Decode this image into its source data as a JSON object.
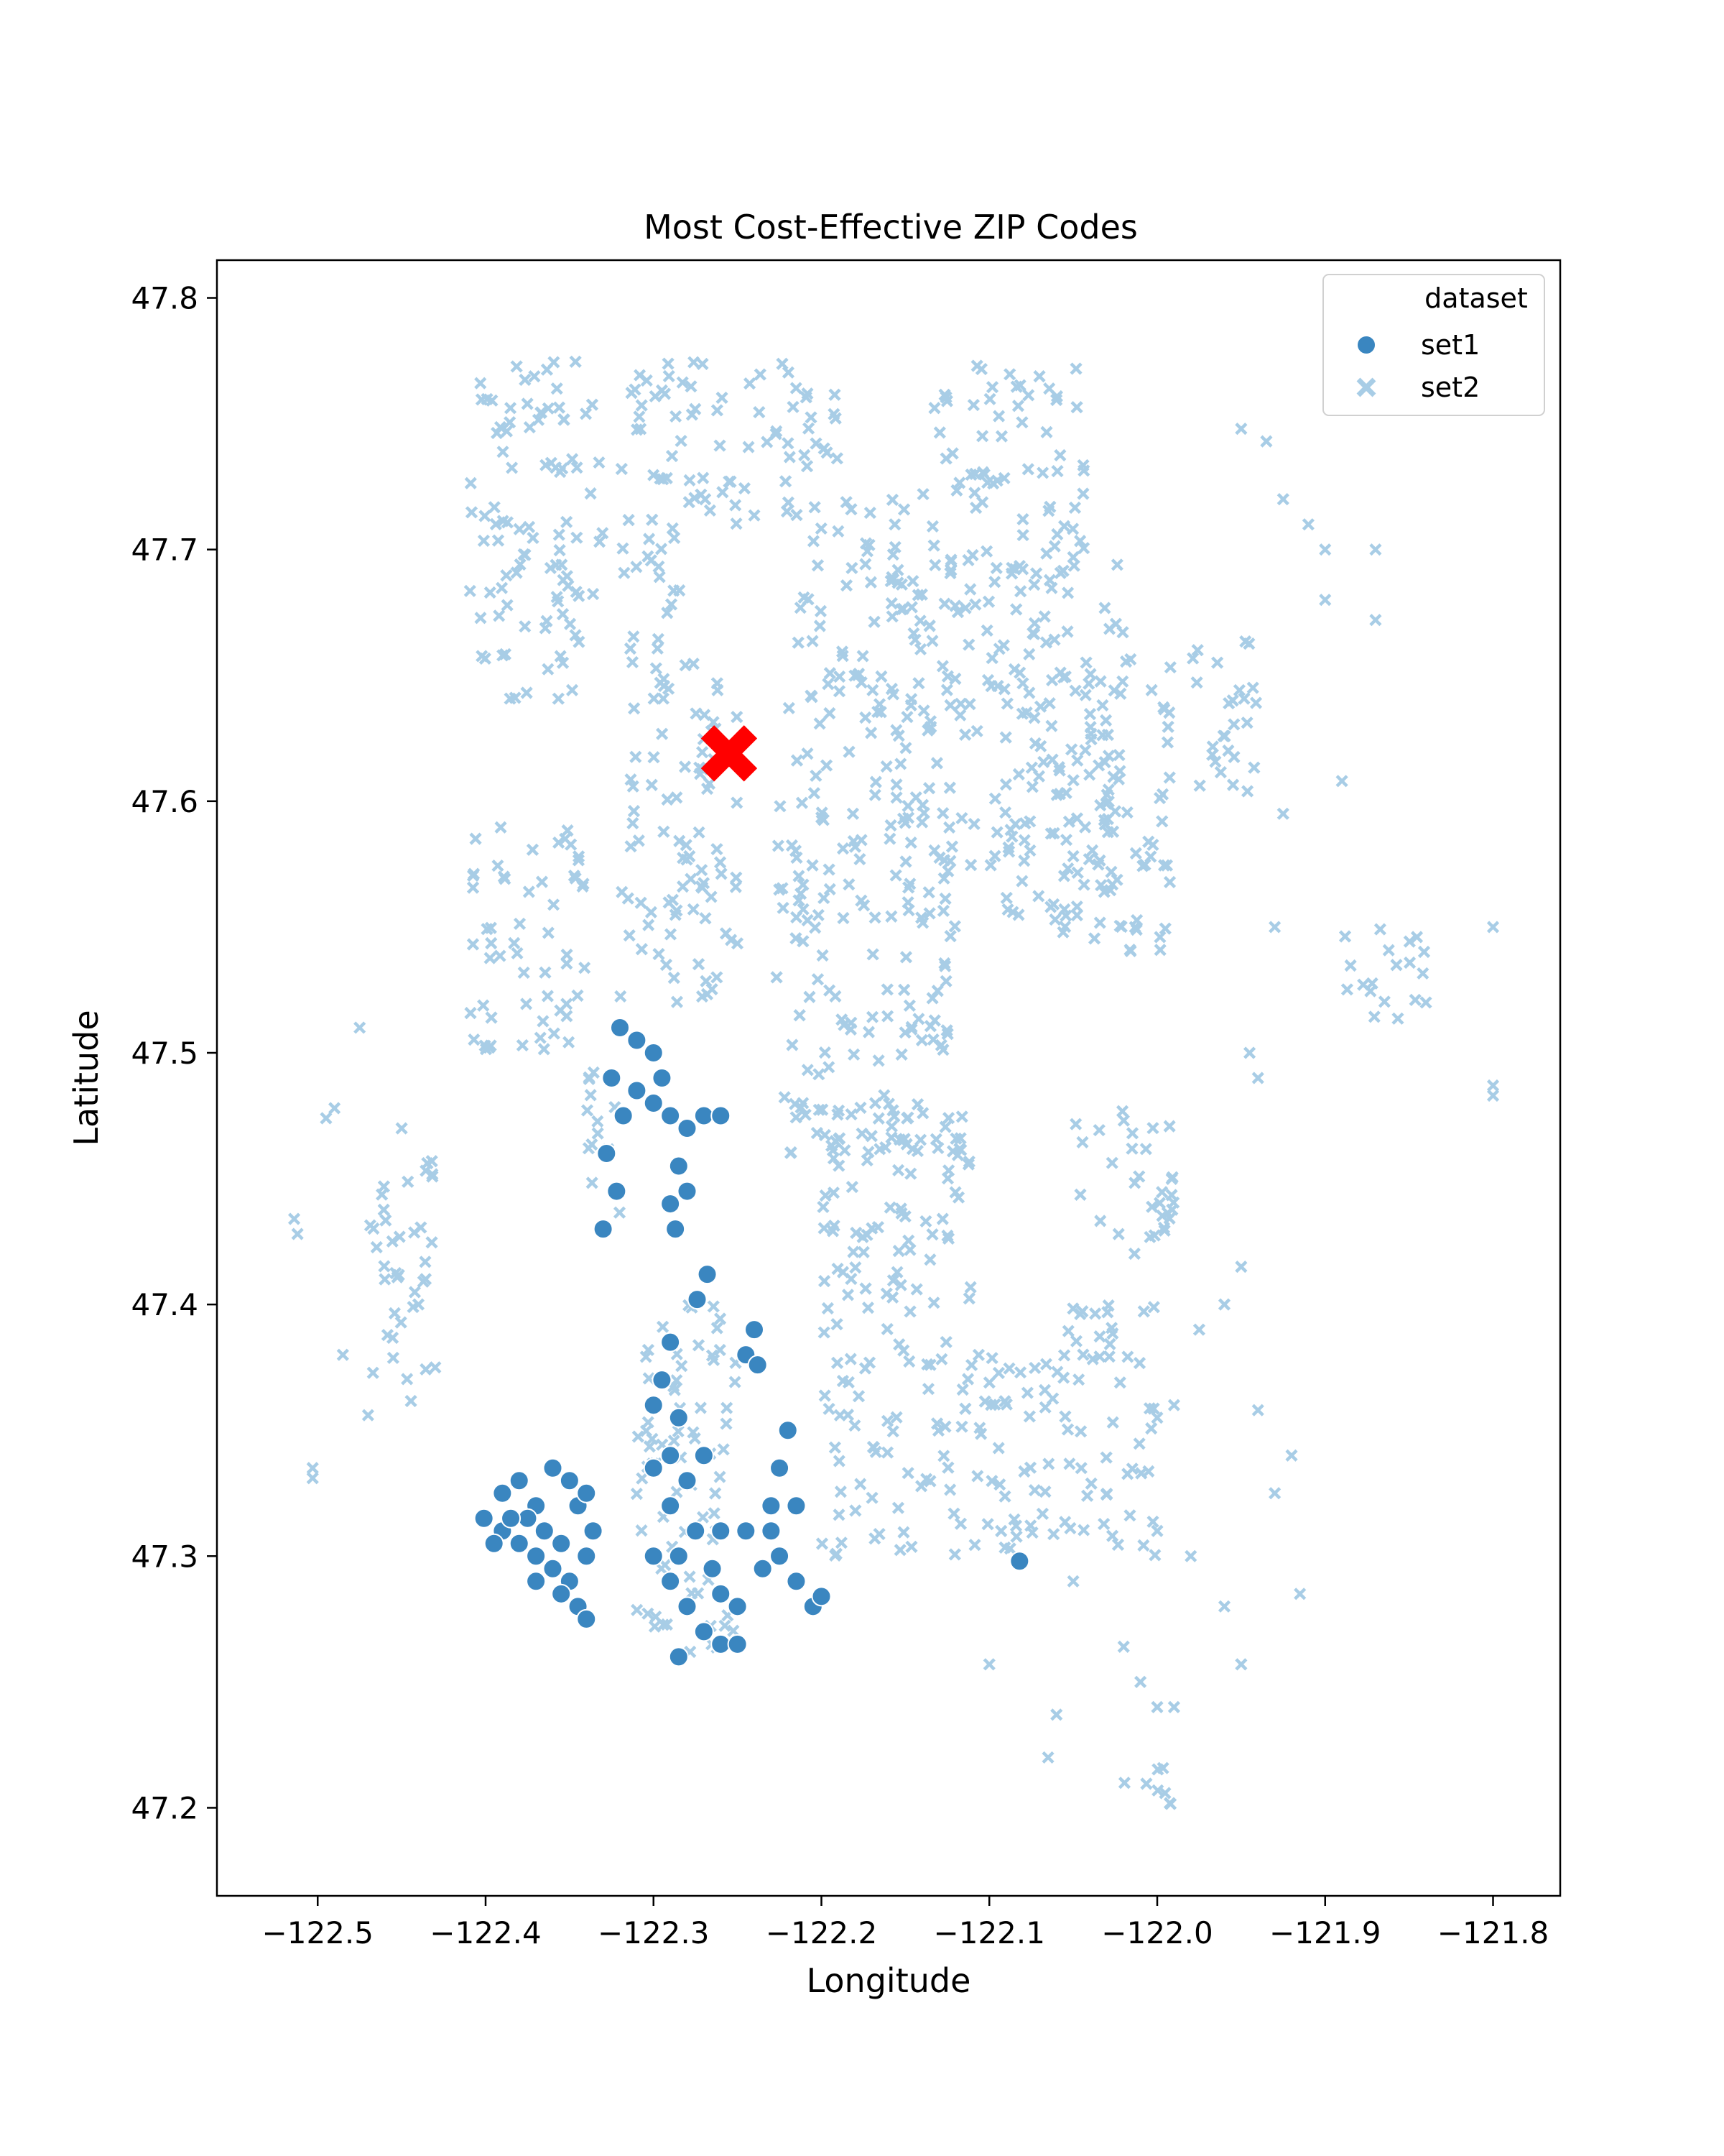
{
  "chart_data": {
    "type": "scatter",
    "title": "Most Cost-Effective ZIP Codes",
    "xlabel": "Longitude",
    "ylabel": "Latitude",
    "xlim": [
      -122.56,
      -121.76
    ],
    "ylim": [
      47.165,
      47.815
    ],
    "xticks": [
      -122.5,
      -122.4,
      -122.3,
      -122.2,
      -122.1,
      -122.0,
      -121.9,
      -121.8
    ],
    "yticks": [
      47.2,
      47.3,
      47.4,
      47.5,
      47.6,
      47.7,
      47.8
    ],
    "xtick_labels": [
      "−122.5",
      "−122.4",
      "−122.3",
      "−122.2",
      "−122.1",
      "−122.0",
      "−121.9",
      "−121.8"
    ],
    "ytick_labels": [
      "47.2",
      "47.3",
      "47.4",
      "47.5",
      "47.6",
      "47.7",
      "47.8"
    ],
    "grid": false,
    "legend": {
      "title": "dataset",
      "placement": "top-right",
      "entries": [
        {
          "name": "set1",
          "marker": "circle",
          "color": "#3a86c0"
        },
        {
          "name": "set2",
          "marker": "x",
          "color": "#a8cde6"
        }
      ]
    },
    "highlight_point": {
      "x": -122.255,
      "y": 47.619,
      "marker": "x",
      "color": "#ff0000"
    },
    "series": [
      {
        "name": "set1",
        "marker": "circle",
        "color": "#3a86c0",
        "points": [
          [
            -122.32,
            47.51
          ],
          [
            -122.31,
            47.505
          ],
          [
            -122.325,
            47.49
          ],
          [
            -122.318,
            47.475
          ],
          [
            -122.328,
            47.46
          ],
          [
            -122.322,
            47.445
          ],
          [
            -122.33,
            47.43
          ],
          [
            -122.31,
            47.485
          ],
          [
            -122.3,
            47.48
          ],
          [
            -122.29,
            47.475
          ],
          [
            -122.28,
            47.47
          ],
          [
            -122.27,
            47.475
          ],
          [
            -122.26,
            47.475
          ],
          [
            -122.295,
            47.49
          ],
          [
            -122.285,
            47.455
          ],
          [
            -122.29,
            47.44
          ],
          [
            -122.28,
            47.445
          ],
          [
            -122.287,
            47.43
          ],
          [
            -122.3,
            47.5
          ],
          [
            -122.268,
            47.412
          ],
          [
            -122.274,
            47.402
          ],
          [
            -122.24,
            47.39
          ],
          [
            -122.245,
            47.38
          ],
          [
            -122.238,
            47.376
          ],
          [
            -122.29,
            47.385
          ],
          [
            -122.295,
            47.37
          ],
          [
            -122.3,
            47.36
          ],
          [
            -122.285,
            47.355
          ],
          [
            -122.29,
            47.34
          ],
          [
            -122.28,
            47.33
          ],
          [
            -122.29,
            47.32
          ],
          [
            -122.275,
            47.31
          ],
          [
            -122.285,
            47.3
          ],
          [
            -122.29,
            47.29
          ],
          [
            -122.28,
            47.28
          ],
          [
            -122.27,
            47.27
          ],
          [
            -122.26,
            47.265
          ],
          [
            -122.285,
            47.26
          ],
          [
            -122.25,
            47.265
          ],
          [
            -122.265,
            47.295
          ],
          [
            -122.3,
            47.3
          ],
          [
            -122.26,
            47.31
          ],
          [
            -122.27,
            47.34
          ],
          [
            -122.3,
            47.335
          ],
          [
            -122.245,
            47.31
          ],
          [
            -122.26,
            47.285
          ],
          [
            -122.25,
            47.28
          ],
          [
            -122.22,
            47.35
          ],
          [
            -122.225,
            47.335
          ],
          [
            -122.215,
            47.32
          ],
          [
            -122.23,
            47.31
          ],
          [
            -122.225,
            47.3
          ],
          [
            -122.215,
            47.29
          ],
          [
            -122.205,
            47.28
          ],
          [
            -122.23,
            47.32
          ],
          [
            -122.2,
            47.284
          ],
          [
            -122.235,
            47.295
          ],
          [
            -122.401,
            47.315
          ],
          [
            -122.39,
            47.325
          ],
          [
            -122.38,
            47.33
          ],
          [
            -122.37,
            47.32
          ],
          [
            -122.36,
            47.335
          ],
          [
            -122.35,
            47.33
          ],
          [
            -122.345,
            47.32
          ],
          [
            -122.39,
            47.31
          ],
          [
            -122.38,
            47.305
          ],
          [
            -122.37,
            47.3
          ],
          [
            -122.36,
            47.295
          ],
          [
            -122.35,
            47.29
          ],
          [
            -122.34,
            47.3
          ],
          [
            -122.345,
            47.28
          ],
          [
            -122.355,
            47.285
          ],
          [
            -122.365,
            47.31
          ],
          [
            -122.375,
            47.315
          ],
          [
            -122.395,
            47.305
          ],
          [
            -122.385,
            47.315
          ],
          [
            -122.34,
            47.275
          ],
          [
            -122.336,
            47.31
          ],
          [
            -122.34,
            47.325
          ],
          [
            -122.355,
            47.305
          ],
          [
            -122.37,
            47.29
          ],
          [
            -122.082,
            47.298
          ]
        ]
      },
      {
        "name": "set2",
        "marker": "x",
        "color": "#a8cde6",
        "regions": [
          {
            "xmin": -122.41,
            "xmax": -122.33,
            "ymin": 47.64,
            "ymax": 47.775
          },
          {
            "xmin": -122.32,
            "xmax": -122.28,
            "ymin": 47.65,
            "ymax": 47.775
          },
          {
            "xmin": -122.28,
            "xmax": -122.19,
            "ymin": 47.71,
            "ymax": 47.775
          },
          {
            "xmin": -122.14,
            "xmax": -122.04,
            "ymin": 47.69,
            "ymax": 47.775
          },
          {
            "xmin": -122.22,
            "xmax": -122.15,
            "ymin": 47.6,
            "ymax": 47.72
          },
          {
            "xmin": -122.15,
            "xmax": -122.02,
            "ymin": 47.55,
            "ymax": 47.7
          },
          {
            "xmin": -122.06,
            "xmax": -121.99,
            "ymin": 47.54,
            "ymax": 47.66
          },
          {
            "xmin": -122.41,
            "xmax": -122.34,
            "ymin": 47.5,
            "ymax": 47.59
          },
          {
            "xmin": -122.32,
            "xmax": -122.25,
            "ymin": 47.52,
            "ymax": 47.66
          },
          {
            "xmin": -122.23,
            "xmax": -122.12,
            "ymin": 47.46,
            "ymax": 47.6
          },
          {
            "xmin": -122.2,
            "xmax": -122.11,
            "ymin": 47.38,
            "ymax": 47.48
          },
          {
            "xmin": -122.34,
            "xmax": -122.32,
            "ymin": 47.43,
            "ymax": 47.5
          },
          {
            "xmin": -122.31,
            "xmax": -122.25,
            "ymin": 47.26,
            "ymax": 47.4
          },
          {
            "xmin": -122.2,
            "xmax": -122.06,
            "ymin": 47.3,
            "ymax": 47.38
          },
          {
            "xmin": -122.06,
            "xmax": -122.0,
            "ymin": 47.3,
            "ymax": 47.4
          },
          {
            "xmin": -122.05,
            "xmax": -121.99,
            "ymin": 47.42,
            "ymax": 47.48
          },
          {
            "xmin": -121.98,
            "xmax": -121.94,
            "ymin": 47.6,
            "ymax": 47.67
          },
          {
            "xmin": -121.89,
            "xmax": -121.84,
            "ymin": 47.51,
            "ymax": 47.55
          },
          {
            "xmin": -122.47,
            "xmax": -122.43,
            "ymin": 47.36,
            "ymax": 47.46
          },
          {
            "xmin": -122.02,
            "xmax": -121.99,
            "ymin": 47.2,
            "ymax": 47.22
          }
        ],
        "points": [
          [
            -122.514,
            47.434
          ],
          [
            -122.512,
            47.428
          ],
          [
            -122.503,
            47.335
          ],
          [
            -122.503,
            47.331
          ],
          [
            -122.495,
            47.474
          ],
          [
            -122.49,
            47.478
          ],
          [
            -122.485,
            47.38
          ],
          [
            -122.475,
            47.51
          ],
          [
            -122.47,
            47.356
          ],
          [
            -122.45,
            47.47
          ],
          [
            -122.46,
            47.41
          ],
          [
            -122.44,
            47.4
          ],
          [
            -122.43,
            47.375
          ],
          [
            -121.95,
            47.748
          ],
          [
            -121.935,
            47.743
          ],
          [
            -121.925,
            47.72
          ],
          [
            -121.91,
            47.71
          ],
          [
            -121.9,
            47.7
          ],
          [
            -121.9,
            47.68
          ],
          [
            -121.87,
            47.672
          ],
          [
            -121.87,
            47.7
          ],
          [
            -121.89,
            47.608
          ],
          [
            -121.8,
            47.55
          ],
          [
            -121.8,
            47.487
          ],
          [
            -121.8,
            47.483
          ],
          [
            -121.84,
            47.52
          ],
          [
            -121.93,
            47.55
          ],
          [
            -121.945,
            47.5
          ],
          [
            -121.94,
            47.49
          ],
          [
            -121.96,
            47.4
          ],
          [
            -121.975,
            47.39
          ],
          [
            -121.95,
            47.415
          ],
          [
            -121.94,
            47.358
          ],
          [
            -121.93,
            47.325
          ],
          [
            -121.92,
            47.34
          ],
          [
            -121.915,
            47.285
          ],
          [
            -121.99,
            47.36
          ],
          [
            -122.0,
            47.355
          ],
          [
            -121.99,
            47.24
          ],
          [
            -122.0,
            47.24
          ],
          [
            -122.01,
            47.25
          ],
          [
            -122.02,
            47.264
          ],
          [
            -122.05,
            47.29
          ],
          [
            -122.06,
            47.237
          ],
          [
            -122.065,
            47.22
          ],
          [
            -122.1,
            47.257
          ],
          [
            -121.95,
            47.257
          ],
          [
            -121.96,
            47.28
          ],
          [
            -121.98,
            47.3
          ],
          [
            -122.0,
            47.31
          ],
          [
            -121.955,
            47.64
          ],
          [
            -121.925,
            47.595
          ]
        ]
      }
    ]
  }
}
